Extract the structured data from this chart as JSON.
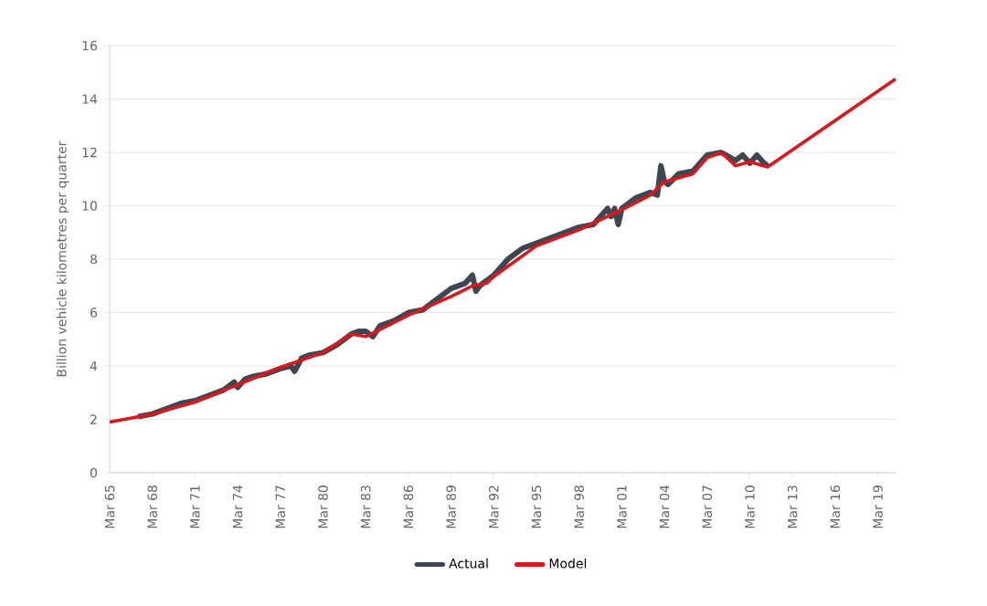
{
  "chart_data": {
    "type": "line",
    "ylabel": "Billion vehicle kilometres per quarter",
    "xlim": [
      "1965-03",
      "2020-06"
    ],
    "ylim": [
      0,
      16
    ],
    "yticks": [
      0,
      2,
      4,
      6,
      8,
      10,
      12,
      14,
      16
    ],
    "xticks": [
      {
        "value": "1965-03",
        "label": "Mar 65"
      },
      {
        "value": "1968-03",
        "label": "Mar 68"
      },
      {
        "value": "1971-03",
        "label": "Mar 71"
      },
      {
        "value": "1974-03",
        "label": "Mar 74"
      },
      {
        "value": "1977-03",
        "label": "Mar 77"
      },
      {
        "value": "1980-03",
        "label": "Mar 80"
      },
      {
        "value": "1983-03",
        "label": "Mar 83"
      },
      {
        "value": "1986-03",
        "label": "Mar 86"
      },
      {
        "value": "1989-03",
        "label": "Mar 89"
      },
      {
        "value": "1992-03",
        "label": "Mar 92"
      },
      {
        "value": "1995-03",
        "label": "Mar 95"
      },
      {
        "value": "1998-03",
        "label": "Mar 98"
      },
      {
        "value": "2001-03",
        "label": "Mar 01"
      },
      {
        "value": "2004-03",
        "label": "Mar 04"
      },
      {
        "value": "2007-03",
        "label": "Mar 07"
      },
      {
        "value": "2010-03",
        "label": "Mar 10"
      },
      {
        "value": "2013-03",
        "label": "Mar 13"
      },
      {
        "value": "2016-03",
        "label": "Mar 16"
      },
      {
        "value": "2019-03",
        "label": "Mar 19"
      }
    ],
    "grid": "y",
    "legend": "bottom",
    "marker": "none",
    "series": [
      {
        "name": "Actual",
        "color": "#3d4651",
        "x": [
          "1967-03",
          "1968-03",
          "1969-03",
          "1970-03",
          "1971-03",
          "1972-03",
          "1973-03",
          "1973-12",
          "1974-03",
          "1974-09",
          "1975-03",
          "1976-03",
          "1977-03",
          "1977-12",
          "1978-03",
          "1978-09",
          "1979-03",
          "1980-03",
          "1981-03",
          "1982-03",
          "1982-09",
          "1983-03",
          "1983-09",
          "1984-03",
          "1985-03",
          "1986-03",
          "1987-03",
          "1988-03",
          "1989-03",
          "1990-03",
          "1990-09",
          "1990-12",
          "1991-03",
          "1991-09",
          "1992-03",
          "1993-03",
          "1994-03",
          "1995-03",
          "1996-03",
          "1997-03",
          "1998-03",
          "1999-03",
          "1999-09",
          "2000-03",
          "2000-06",
          "2000-09",
          "2000-12",
          "2001-03",
          "2002-03",
          "2003-03",
          "2003-09",
          "2003-12",
          "2004-03",
          "2004-06",
          "2005-03",
          "2006-03",
          "2006-09",
          "2007-03",
          "2008-03",
          "2009-03",
          "2009-09",
          "2010-03",
          "2010-09",
          "2011-03",
          "2011-06"
        ],
        "values": [
          2.1,
          2.2,
          2.4,
          2.6,
          2.7,
          2.9,
          3.1,
          3.4,
          3.2,
          3.5,
          3.6,
          3.7,
          3.9,
          4.0,
          3.8,
          4.3,
          4.4,
          4.5,
          4.8,
          5.2,
          5.3,
          5.3,
          5.1,
          5.5,
          5.7,
          6.0,
          6.1,
          6.5,
          6.9,
          7.1,
          7.4,
          6.8,
          7.0,
          7.2,
          7.4,
          8.0,
          8.4,
          8.6,
          8.8,
          9.0,
          9.2,
          9.3,
          9.6,
          9.9,
          9.6,
          9.9,
          9.3,
          9.9,
          10.3,
          10.5,
          10.4,
          11.5,
          10.9,
          10.8,
          11.2,
          11.3,
          11.6,
          11.9,
          12.0,
          11.7,
          11.9,
          11.6,
          11.9,
          11.6,
          11.5
        ]
      },
      {
        "name": "Model",
        "color": "#d7191f",
        "x": [
          "1965-03",
          "1968-03",
          "1971-03",
          "1974-03",
          "1977-03",
          "1980-03",
          "1982-03",
          "1983-03",
          "1986-03",
          "1989-03",
          "1990-09",
          "1991-09",
          "1992-03",
          "1995-03",
          "1998-03",
          "2001-03",
          "2003-03",
          "2004-03",
          "2006-03",
          "2007-03",
          "2008-03",
          "2009-03",
          "2010-03",
          "2011-06",
          "2020-06"
        ],
        "values": [
          1.9,
          2.2,
          2.65,
          3.3,
          3.95,
          4.5,
          5.2,
          5.1,
          5.9,
          6.6,
          7.0,
          7.1,
          7.35,
          8.5,
          9.1,
          9.85,
          10.4,
          10.9,
          11.2,
          11.8,
          12.0,
          11.5,
          11.65,
          11.45,
          14.75
        ]
      }
    ]
  }
}
